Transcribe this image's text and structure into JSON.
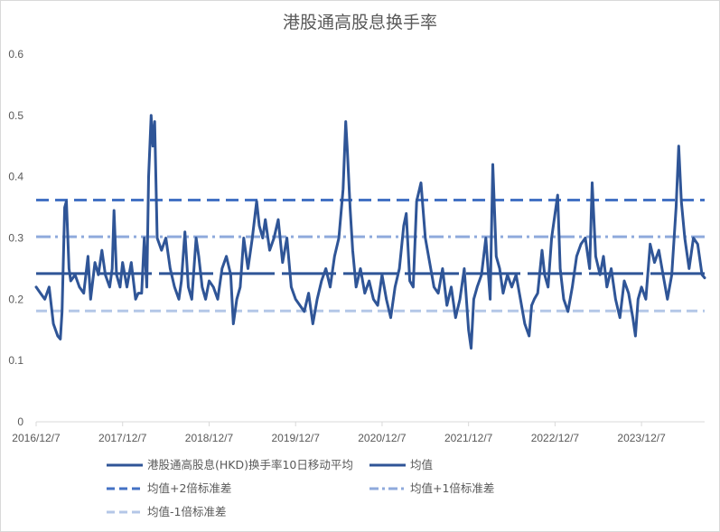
{
  "chart_data": {
    "type": "line",
    "title": "港股通高股息换手率",
    "ylim": [
      0,
      0.6
    ],
    "y_ticks": [
      "0",
      "0.1",
      "0.2",
      "0.3",
      "0.4",
      "0.5",
      "0.6"
    ],
    "x_ticks": [
      "2016/12/7",
      "2017/12/7",
      "2018/12/7",
      "2019/12/7",
      "2020/12/7",
      "2021/12/7",
      "2022/12/7",
      "2023/12/7"
    ],
    "grid": false,
    "legend_position": "bottom",
    "colors": {
      "series": "#2f5597",
      "mean": "#2f5597",
      "plus2": "#4472c4",
      "plus1": "#8faadc",
      "minus1": "#b4c7e7"
    },
    "mean": 0.242,
    "plus2sd": 0.362,
    "plus1sd": 0.302,
    "minus1sd": 0.181,
    "series": [
      {
        "name": "港股通高股息(HKD)换手率10日移动平均",
        "points": [
          [
            0.0,
            0.22
          ],
          [
            0.05,
            0.21
          ],
          [
            0.1,
            0.2
          ],
          [
            0.15,
            0.22
          ],
          [
            0.2,
            0.16
          ],
          [
            0.25,
            0.14
          ],
          [
            0.28,
            0.135
          ],
          [
            0.3,
            0.18
          ],
          [
            0.33,
            0.35
          ],
          [
            0.35,
            0.36
          ],
          [
            0.38,
            0.25
          ],
          [
            0.4,
            0.23
          ],
          [
            0.45,
            0.24
          ],
          [
            0.5,
            0.22
          ],
          [
            0.55,
            0.21
          ],
          [
            0.6,
            0.27
          ],
          [
            0.63,
            0.2
          ],
          [
            0.68,
            0.26
          ],
          [
            0.72,
            0.24
          ],
          [
            0.76,
            0.28
          ],
          [
            0.8,
            0.24
          ],
          [
            0.85,
            0.22
          ],
          [
            0.88,
            0.25
          ],
          [
            0.9,
            0.345
          ],
          [
            0.93,
            0.24
          ],
          [
            0.97,
            0.22
          ],
          [
            1.0,
            0.26
          ],
          [
            1.05,
            0.22
          ],
          [
            1.1,
            0.26
          ],
          [
            1.15,
            0.2
          ],
          [
            1.18,
            0.21
          ],
          [
            1.22,
            0.21
          ],
          [
            1.25,
            0.3
          ],
          [
            1.28,
            0.22
          ],
          [
            1.3,
            0.4
          ],
          [
            1.33,
            0.5
          ],
          [
            1.35,
            0.45
          ],
          [
            1.37,
            0.49
          ],
          [
            1.4,
            0.3
          ],
          [
            1.45,
            0.28
          ],
          [
            1.5,
            0.3
          ],
          [
            1.55,
            0.25
          ],
          [
            1.6,
            0.22
          ],
          [
            1.65,
            0.2
          ],
          [
            1.68,
            0.23
          ],
          [
            1.72,
            0.31
          ],
          [
            1.76,
            0.22
          ],
          [
            1.8,
            0.2
          ],
          [
            1.85,
            0.3
          ],
          [
            1.88,
            0.27
          ],
          [
            1.92,
            0.22
          ],
          [
            1.96,
            0.2
          ],
          [
            2.0,
            0.23
          ],
          [
            2.05,
            0.22
          ],
          [
            2.1,
            0.2
          ],
          [
            2.15,
            0.25
          ],
          [
            2.2,
            0.27
          ],
          [
            2.25,
            0.24
          ],
          [
            2.28,
            0.16
          ],
          [
            2.32,
            0.2
          ],
          [
            2.36,
            0.22
          ],
          [
            2.4,
            0.3
          ],
          [
            2.45,
            0.25
          ],
          [
            2.5,
            0.3
          ],
          [
            2.55,
            0.36
          ],
          [
            2.58,
            0.32
          ],
          [
            2.62,
            0.3
          ],
          [
            2.65,
            0.33
          ],
          [
            2.7,
            0.28
          ],
          [
            2.75,
            0.3
          ],
          [
            2.8,
            0.33
          ],
          [
            2.85,
            0.26
          ],
          [
            2.9,
            0.3
          ],
          [
            2.95,
            0.22
          ],
          [
            3.0,
            0.2
          ],
          [
            3.05,
            0.19
          ],
          [
            3.1,
            0.18
          ],
          [
            3.15,
            0.21
          ],
          [
            3.2,
            0.16
          ],
          [
            3.25,
            0.2
          ],
          [
            3.3,
            0.23
          ],
          [
            3.35,
            0.25
          ],
          [
            3.4,
            0.22
          ],
          [
            3.45,
            0.27
          ],
          [
            3.5,
            0.3
          ],
          [
            3.55,
            0.38
          ],
          [
            3.58,
            0.49
          ],
          [
            3.6,
            0.44
          ],
          [
            3.63,
            0.35
          ],
          [
            3.66,
            0.28
          ],
          [
            3.7,
            0.22
          ],
          [
            3.75,
            0.25
          ],
          [
            3.8,
            0.21
          ],
          [
            3.85,
            0.23
          ],
          [
            3.9,
            0.2
          ],
          [
            3.95,
            0.19
          ],
          [
            4.0,
            0.24
          ],
          [
            4.05,
            0.2
          ],
          [
            4.1,
            0.17
          ],
          [
            4.15,
            0.22
          ],
          [
            4.2,
            0.25
          ],
          [
            4.25,
            0.32
          ],
          [
            4.28,
            0.34
          ],
          [
            4.32,
            0.23
          ],
          [
            4.36,
            0.22
          ],
          [
            4.4,
            0.36
          ],
          [
            4.45,
            0.39
          ],
          [
            4.5,
            0.3
          ],
          [
            4.55,
            0.26
          ],
          [
            4.6,
            0.22
          ],
          [
            4.65,
            0.21
          ],
          [
            4.7,
            0.25
          ],
          [
            4.75,
            0.19
          ],
          [
            4.8,
            0.22
          ],
          [
            4.85,
            0.17
          ],
          [
            4.9,
            0.2
          ],
          [
            4.95,
            0.25
          ],
          [
            5.0,
            0.15
          ],
          [
            5.03,
            0.12
          ],
          [
            5.06,
            0.2
          ],
          [
            5.1,
            0.22
          ],
          [
            5.15,
            0.24
          ],
          [
            5.2,
            0.3
          ],
          [
            5.25,
            0.2
          ],
          [
            5.28,
            0.42
          ],
          [
            5.32,
            0.27
          ],
          [
            5.36,
            0.25
          ],
          [
            5.4,
            0.21
          ],
          [
            5.45,
            0.24
          ],
          [
            5.5,
            0.22
          ],
          [
            5.55,
            0.24
          ],
          [
            5.6,
            0.2
          ],
          [
            5.65,
            0.16
          ],
          [
            5.7,
            0.14
          ],
          [
            5.73,
            0.19
          ],
          [
            5.76,
            0.2
          ],
          [
            5.8,
            0.21
          ],
          [
            5.85,
            0.28
          ],
          [
            5.88,
            0.24
          ],
          [
            5.92,
            0.22
          ],
          [
            5.96,
            0.3
          ],
          [
            6.0,
            0.34
          ],
          [
            6.03,
            0.37
          ],
          [
            6.06,
            0.25
          ],
          [
            6.1,
            0.2
          ],
          [
            6.15,
            0.18
          ],
          [
            6.2,
            0.22
          ],
          [
            6.25,
            0.27
          ],
          [
            6.3,
            0.29
          ],
          [
            6.35,
            0.3
          ],
          [
            6.4,
            0.25
          ],
          [
            6.43,
            0.39
          ],
          [
            6.47,
            0.27
          ],
          [
            6.52,
            0.24
          ],
          [
            6.56,
            0.27
          ],
          [
            6.6,
            0.22
          ],
          [
            6.65,
            0.25
          ],
          [
            6.7,
            0.2
          ],
          [
            6.75,
            0.17
          ],
          [
            6.8,
            0.23
          ],
          [
            6.85,
            0.21
          ],
          [
            6.9,
            0.17
          ],
          [
            6.93,
            0.14
          ],
          [
            6.96,
            0.2
          ],
          [
            7.0,
            0.22
          ],
          [
            7.05,
            0.2
          ],
          [
            7.1,
            0.29
          ],
          [
            7.15,
            0.26
          ],
          [
            7.2,
            0.28
          ],
          [
            7.25,
            0.24
          ],
          [
            7.3,
            0.2
          ],
          [
            7.35,
            0.24
          ],
          [
            7.4,
            0.35
          ],
          [
            7.43,
            0.45
          ],
          [
            7.46,
            0.36
          ],
          [
            7.5,
            0.3
          ],
          [
            7.55,
            0.25
          ],
          [
            7.6,
            0.3
          ],
          [
            7.65,
            0.29
          ],
          [
            7.7,
            0.24
          ],
          [
            7.73,
            0.235
          ]
        ]
      },
      {
        "name": "均值"
      },
      {
        "name": "均值+2倍标准差"
      },
      {
        "name": "均值+1倍标准差"
      },
      {
        "name": "均值-1倍标准差"
      }
    ]
  }
}
